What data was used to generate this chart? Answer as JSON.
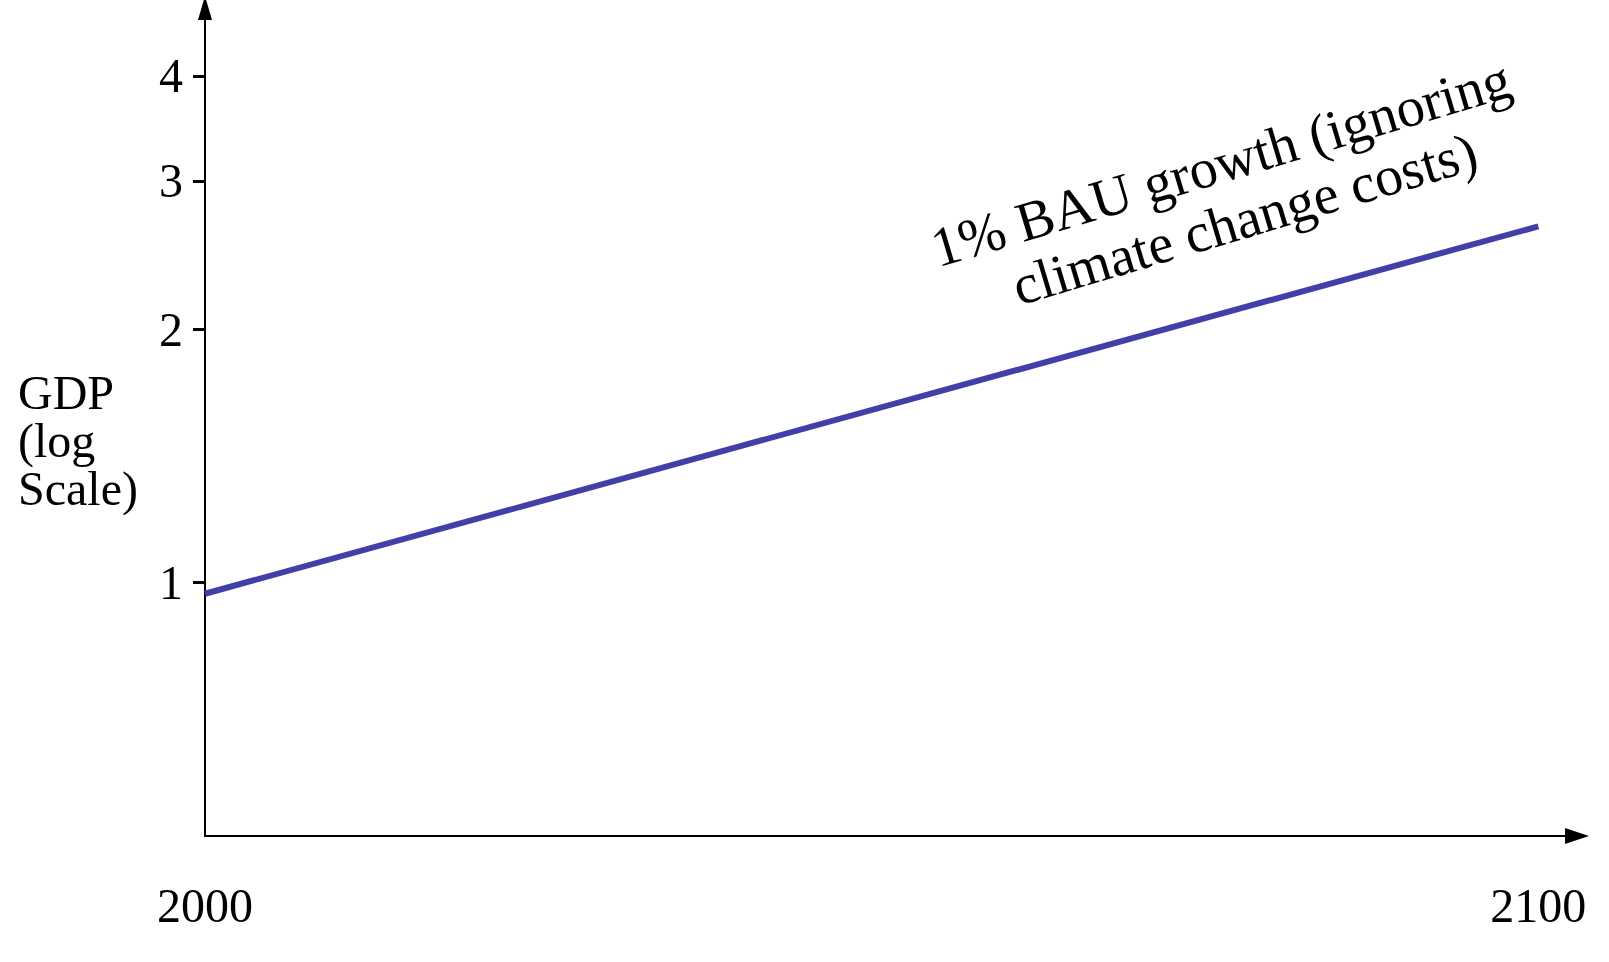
{
  "chart_data": {
    "type": "line",
    "x": [
      2000,
      2100
    ],
    "series": [
      {
        "color": "#4040a8",
        "values": [
          0.97,
          2.65
        ]
      }
    ],
    "ylabel": "GDP (log Scale)",
    "log": true,
    "ylim": [
      0.5,
      4.75
    ],
    "yticks": [
      1,
      2,
      3,
      4
    ],
    "xlim": [
      2000,
      2102
    ],
    "xticks": [
      2000,
      2100
    ],
    "annotations": [
      "1% BAU growth (ignoring climate change costs)"
    ],
    "grid": false,
    "marker": "none",
    "line_style": "solid"
  }
}
